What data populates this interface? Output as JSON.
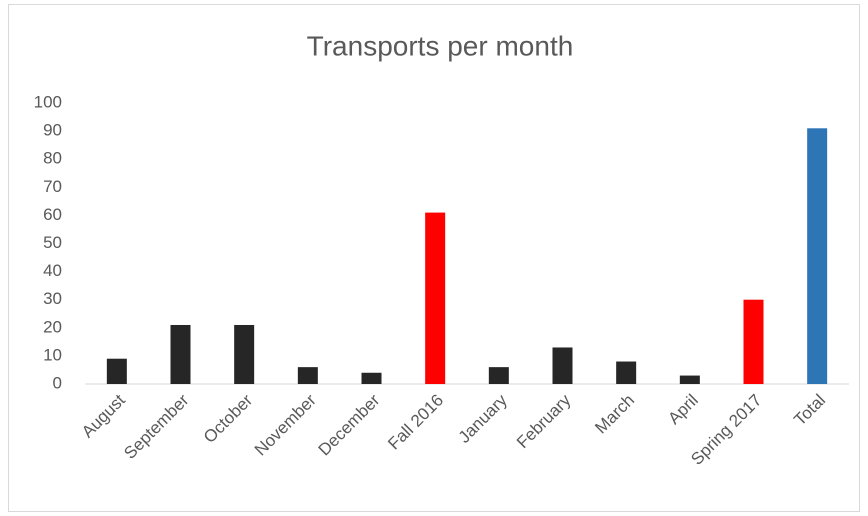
{
  "chart_data": {
    "type": "bar",
    "title": "Transports per month",
    "categories": [
      "August",
      "September",
      "October",
      "November",
      "December",
      "Fall 2016",
      "January",
      "February",
      "March",
      "April",
      "Spring 2017",
      "Total"
    ],
    "values": [
      9,
      21,
      21,
      6,
      4,
      61,
      6,
      13,
      8,
      3,
      30,
      91
    ],
    "colors": [
      "#262626",
      "#262626",
      "#262626",
      "#262626",
      "#262626",
      "#ff0000",
      "#262626",
      "#262626",
      "#262626",
      "#262626",
      "#ff0000",
      "#2e75b6"
    ],
    "ylim": [
      0,
      100
    ],
    "yticks": [
      0,
      10,
      20,
      30,
      40,
      50,
      60,
      70,
      80,
      90,
      100
    ],
    "grid": false
  }
}
